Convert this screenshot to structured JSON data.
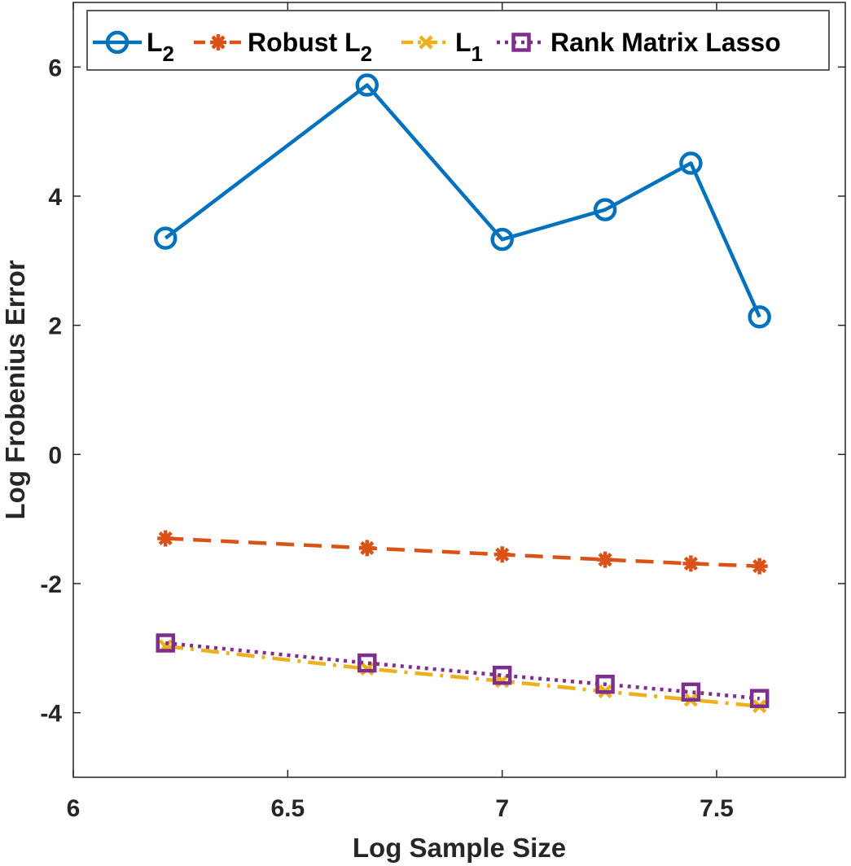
{
  "chart_data": {
    "type": "line",
    "xlabel": "Log Sample Size",
    "ylabel": "Log Frobenius Error",
    "xlim": [
      6,
      7.8
    ],
    "ylim": [
      -5,
      7
    ],
    "xticks": [
      6,
      6.5,
      7,
      7.5
    ],
    "xtick_labels": [
      "6",
      "6.5",
      "7",
      "7.5"
    ],
    "yticks": [
      -4,
      -2,
      0,
      2,
      4,
      6
    ],
    "ytick_labels": [
      "-4",
      "-2",
      "0",
      "2",
      "4",
      "6"
    ],
    "grid": false,
    "legend_position": "top",
    "x": [
      6.215,
      6.685,
      7.0,
      7.24,
      7.44,
      7.6
    ],
    "series": [
      {
        "name": "L",
        "subscript": "2",
        "color": "#0072BD",
        "marker": "circle",
        "linestyle": "solid",
        "values": [
          3.35,
          5.72,
          3.33,
          3.79,
          4.51,
          2.13
        ]
      },
      {
        "name": "Robust L",
        "subscript": "2",
        "color": "#D95319",
        "marker": "asterisk",
        "linestyle": "dashed",
        "values": [
          -1.3,
          -1.45,
          -1.55,
          -1.63,
          -1.69,
          -1.73
        ]
      },
      {
        "name": "L",
        "subscript": "1",
        "color": "#EDB120",
        "marker": "x",
        "linestyle": "dashdot",
        "values": [
          -2.97,
          -3.32,
          -3.51,
          -3.67,
          -3.8,
          -3.9
        ]
      },
      {
        "name": "Rank Matrix Lasso",
        "subscript": "",
        "color": "#7E2F8E",
        "marker": "square",
        "linestyle": "dotted",
        "values": [
          -2.92,
          -3.23,
          -3.42,
          -3.56,
          -3.68,
          -3.78
        ]
      }
    ]
  }
}
